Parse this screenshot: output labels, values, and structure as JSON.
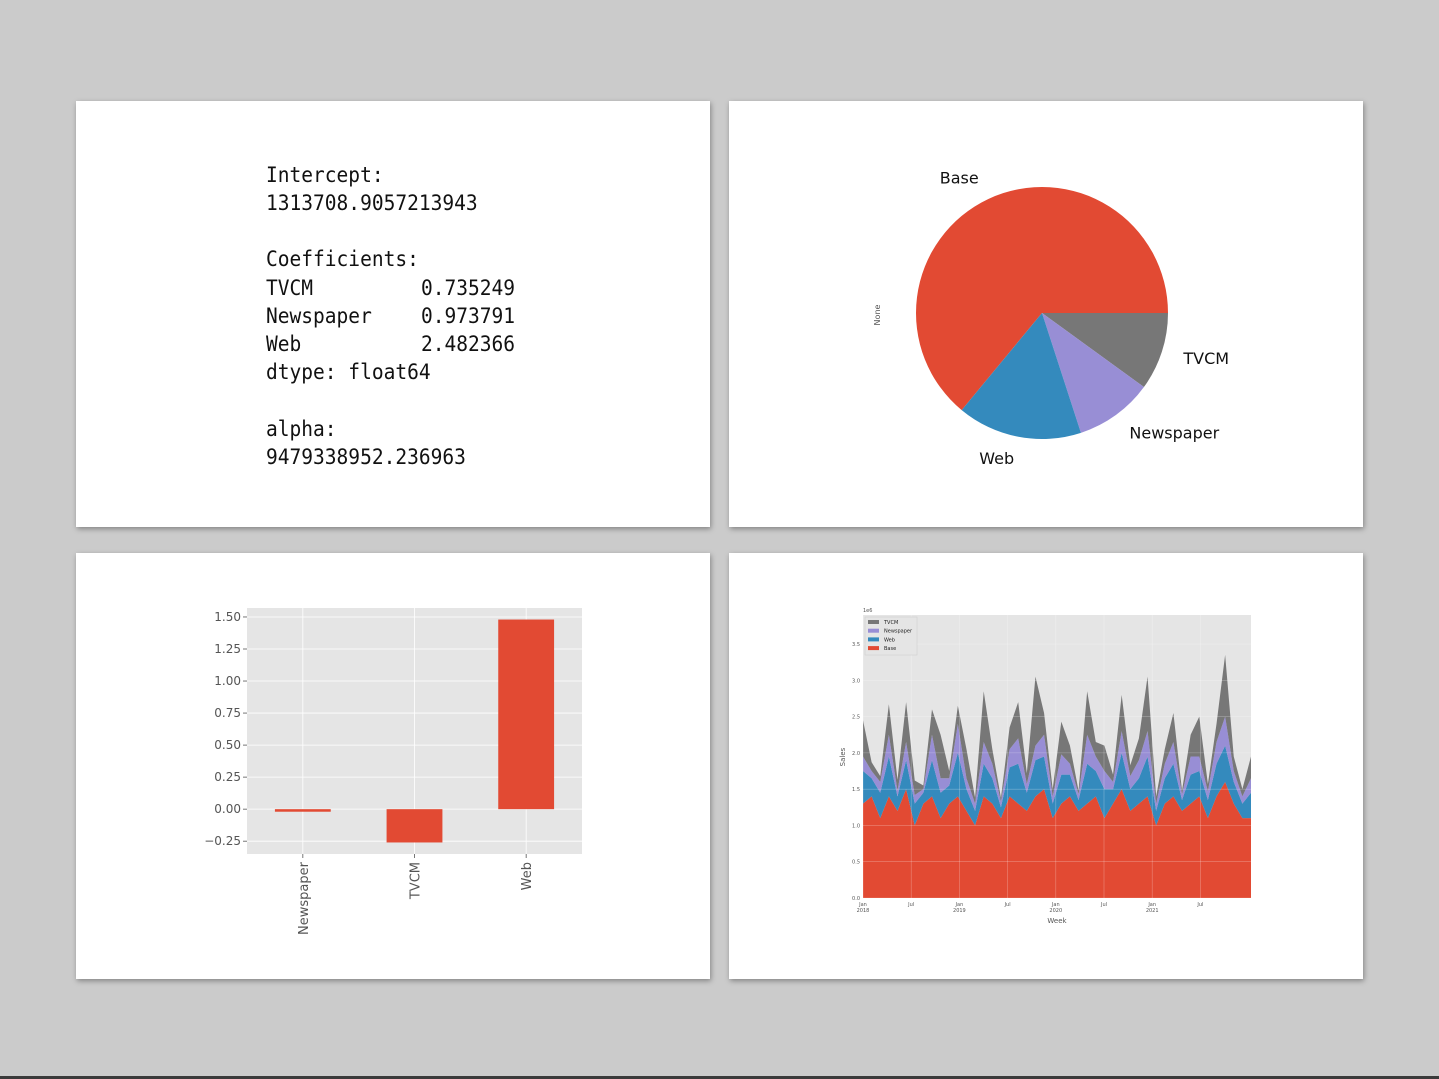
{
  "model_summary": {
    "intercept_label": "Intercept:",
    "intercept_value": "1313708.9057213943",
    "coefficients_label": "Coefficients:",
    "coefficients": [
      {
        "name": "TVCM",
        "value": "0.735249"
      },
      {
        "name": "Newspaper",
        "value": "0.973791"
      },
      {
        "name": "Web",
        "value": "2.482366"
      }
    ],
    "dtype_line": "dtype: float64",
    "alpha_label": "alpha:",
    "alpha_value": "9479338952.236963"
  },
  "colors": {
    "base": "#e24a33",
    "web": "#348abd",
    "newspaper": "#988ed5",
    "tvcm": "#777777",
    "plot_bg": "#e5e5e5",
    "grid": "#ffffff"
  },
  "chart_data": [
    {
      "type": "pie",
      "ylabel": "None",
      "labels": [
        "Base",
        "TVCM",
        "Newspaper",
        "Web"
      ],
      "values": [
        0.64,
        0.1,
        0.1,
        0.16
      ]
    },
    {
      "type": "bar",
      "categories": [
        "Newspaper",
        "TVCM",
        "Web"
      ],
      "values": [
        -0.02,
        -0.26,
        1.48
      ],
      "ylim": [
        -0.35,
        1.57
      ],
      "yticks": [
        "1.50",
        "1.25",
        "1.00",
        "0.75",
        "0.50",
        "0.25",
        "0.00",
        "−0.25"
      ]
    },
    {
      "type": "area",
      "stacked": true,
      "xlabel": "Week",
      "ylabel": "Sales",
      "y_multiplier": "1e6",
      "ylim": [
        0,
        3.9
      ],
      "yticks": [
        "0.0",
        "0.5",
        "1.0",
        "1.5",
        "2.0",
        "2.5",
        "3.0",
        "3.5"
      ],
      "xticks": [
        {
          "label": "Jan",
          "sub": "2018"
        },
        {
          "label": "Jul",
          "sub": ""
        },
        {
          "label": "Jan",
          "sub": "2019"
        },
        {
          "label": "Jul",
          "sub": ""
        },
        {
          "label": "Jan",
          "sub": "2020"
        },
        {
          "label": "Jul",
          "sub": ""
        },
        {
          "label": "Jan",
          "sub": "2021"
        },
        {
          "label": "Jul",
          "sub": ""
        }
      ],
      "legend_position": "top-left",
      "series": [
        {
          "name": "TVCM",
          "sample": [
            0.5,
            0.12,
            0.08,
            0.42,
            0.15,
            0.55,
            0.2,
            0.05,
            0.35,
            0.6,
            0.1,
            0.25,
            0.4,
            0.08,
            0.7,
            0.2,
            0.05,
            0.3,
            0.5,
            0.15,
            0.95,
            0.3,
            0.1,
            0.45,
            0.25,
            0.05,
            0.6,
            0.2,
            0.35,
            0.1,
            0.5,
            0.15,
            0.3,
            0.75,
            0.1,
            0.2,
            0.4,
            0.05,
            0.3,
            0.55,
            0.1,
            0.25,
            0.85,
            0.2,
            0.1,
            0.3
          ]
        },
        {
          "name": "Newspaper",
          "sample": [
            0.2,
            0.1,
            0.15,
            0.3,
            0.08,
            0.25,
            0.12,
            0.05,
            0.35,
            0.2,
            0.1,
            0.4,
            0.15,
            0.1,
            0.3,
            0.2,
            0.08,
            0.25,
            0.35,
            0.12,
            0.2,
            0.3,
            0.1,
            0.28,
            0.15,
            0.08,
            0.4,
            0.2,
            0.25,
            0.1,
            0.3,
            0.18,
            0.25,
            0.35,
            0.1,
            0.2,
            0.3,
            0.08,
            0.25,
            0.2,
            0.12,
            0.3,
            0.4,
            0.15,
            0.1,
            0.2
          ]
        },
        {
          "name": "Web",
          "sample": [
            0.45,
            0.25,
            0.35,
            0.55,
            0.2,
            0.4,
            0.3,
            0.15,
            0.5,
            0.35,
            0.25,
            0.6,
            0.3,
            0.2,
            0.45,
            0.35,
            0.15,
            0.4,
            0.55,
            0.25,
            0.5,
            0.45,
            0.2,
            0.4,
            0.3,
            0.15,
            0.55,
            0.35,
            0.4,
            0.2,
            0.5,
            0.3,
            0.35,
            0.55,
            0.2,
            0.35,
            0.45,
            0.15,
            0.4,
            0.35,
            0.25,
            0.45,
            0.5,
            0.3,
            0.2,
            0.35
          ]
        },
        {
          "name": "Base",
          "sample": [
            1.3,
            1.4,
            1.1,
            1.4,
            1.2,
            1.5,
            1.0,
            1.3,
            1.4,
            1.1,
            1.3,
            1.4,
            1.2,
            1.0,
            1.4,
            1.3,
            1.1,
            1.4,
            1.3,
            1.2,
            1.4,
            1.5,
            1.1,
            1.3,
            1.4,
            1.2,
            1.3,
            1.4,
            1.1,
            1.3,
            1.5,
            1.2,
            1.3,
            1.4,
            1.0,
            1.3,
            1.4,
            1.2,
            1.3,
            1.4,
            1.1,
            1.4,
            1.6,
            1.3,
            1.1,
            1.1
          ]
        }
      ]
    }
  ]
}
